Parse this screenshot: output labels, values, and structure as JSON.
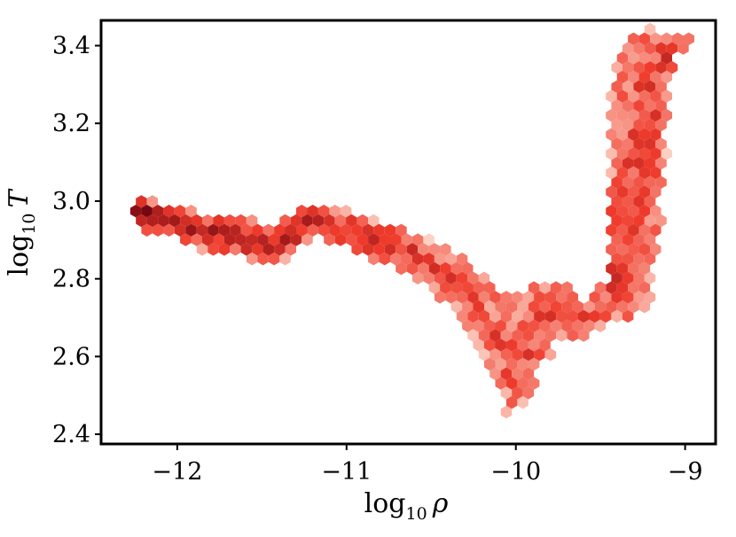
{
  "chart_data": {
    "type": "hexbin",
    "xlabel": {
      "prefix": "log",
      "sub": "10",
      "var": "ρ"
    },
    "ylabel": {
      "prefix": "log",
      "sub": "10",
      "var": "T"
    },
    "xlim": [
      -12.45,
      -8.82
    ],
    "ylim": [
      2.375,
      3.465
    ],
    "xticks": [
      -12,
      -11,
      -10,
      -9
    ],
    "xtick_labels": [
      "−12",
      "−11",
      "−10",
      "−9"
    ],
    "yticks": [
      2.4,
      2.6,
      2.8,
      3.0,
      3.2,
      3.4
    ],
    "ytick_labels": [
      "2.4",
      "2.6",
      "2.8",
      "3.0",
      "3.2",
      "3.4"
    ],
    "colormap": "Reds",
    "colors": {
      "low": "#fee0d2",
      "mid": "#ef3b2c",
      "high": "#67000d",
      "axes": "#000000"
    },
    "density_ridge": [
      {
        "x": -12.22,
        "y": 2.97,
        "width": 0.03,
        "density": 0.95
      },
      {
        "x": -12.05,
        "y": 2.95,
        "width": 0.035,
        "density": 0.85
      },
      {
        "x": -11.85,
        "y": 2.92,
        "width": 0.04,
        "density": 0.8
      },
      {
        "x": -11.65,
        "y": 2.91,
        "width": 0.045,
        "density": 0.78
      },
      {
        "x": -11.5,
        "y": 2.89,
        "width": 0.05,
        "density": 0.72
      },
      {
        "x": -11.35,
        "y": 2.905,
        "width": 0.045,
        "density": 0.7
      },
      {
        "x": -11.2,
        "y": 2.95,
        "width": 0.04,
        "density": 0.72
      },
      {
        "x": -11.05,
        "y": 2.94,
        "width": 0.045,
        "density": 0.62
      },
      {
        "x": -10.9,
        "y": 2.905,
        "width": 0.05,
        "density": 0.58
      },
      {
        "x": -10.75,
        "y": 2.89,
        "width": 0.05,
        "density": 0.58
      },
      {
        "x": -10.6,
        "y": 2.86,
        "width": 0.055,
        "density": 0.55
      },
      {
        "x": -10.45,
        "y": 2.82,
        "width": 0.06,
        "density": 0.5
      },
      {
        "x": -10.3,
        "y": 2.77,
        "width": 0.08,
        "density": 0.45
      },
      {
        "x": -10.15,
        "y": 2.68,
        "width": 0.12,
        "density": 0.42
      },
      {
        "x": -10.05,
        "y": 2.6,
        "width": 0.15,
        "density": 0.45
      },
      {
        "x": -9.95,
        "y": 2.62,
        "width": 0.14,
        "density": 0.48
      },
      {
        "x": -9.85,
        "y": 2.68,
        "width": 0.11,
        "density": 0.5
      },
      {
        "x": -9.75,
        "y": 2.72,
        "width": 0.07,
        "density": 0.48
      },
      {
        "x": -9.6,
        "y": 2.7,
        "width": 0.05,
        "density": 0.5
      },
      {
        "x": -9.45,
        "y": 2.74,
        "width": 0.045,
        "density": 0.52
      },
      {
        "x": -9.35,
        "y": 2.88,
        "width": 0.05,
        "density": 0.55
      },
      {
        "x": -9.28,
        "y": 3.02,
        "width": 0.05,
        "density": 0.55
      },
      {
        "x": -9.22,
        "y": 3.18,
        "width": 0.05,
        "density": 0.5
      },
      {
        "x": -9.18,
        "y": 3.32,
        "width": 0.04,
        "density": 0.5
      },
      {
        "x": -9.12,
        "y": 3.39,
        "width": 0.025,
        "density": 0.6
      },
      {
        "x": -9.02,
        "y": 3.41,
        "width": 0.015,
        "density": 0.75
      }
    ]
  }
}
